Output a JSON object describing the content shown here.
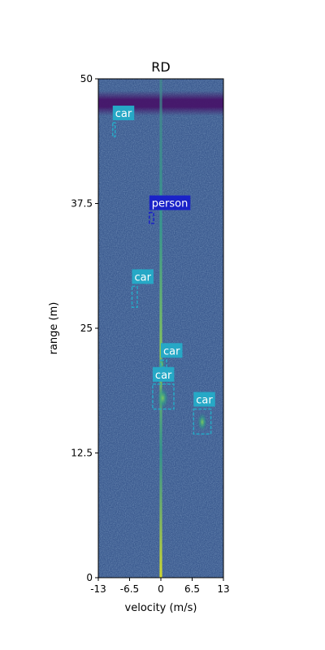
{
  "chart_data": {
    "type": "heatmap",
    "title": "RD",
    "xlabel": "velocity (m/s)",
    "ylabel": "range (m)",
    "xlim": [
      -13,
      13
    ],
    "ylim": [
      0,
      50
    ],
    "x_ticks": [
      {
        "value": -13,
        "label": "-13"
      },
      {
        "value": -6.5,
        "label": "-6.5"
      },
      {
        "value": 0,
        "label": "0"
      },
      {
        "value": 6.5,
        "label": "6.5"
      },
      {
        "value": 13,
        "label": "13"
      }
    ],
    "y_ticks": [
      {
        "value": 0,
        "label": "0"
      },
      {
        "value": 12.5,
        "label": "12.5"
      },
      {
        "value": 25,
        "label": "25"
      },
      {
        "value": 37.5,
        "label": "37.5"
      },
      {
        "value": 50,
        "label": "50"
      }
    ],
    "colormap": "viridis",
    "colors": {
      "background": "#3b5a8f",
      "noise_band": "#4a1a64",
      "car": "#26a8c6",
      "person": "#1a22c8",
      "label_text": "#ffffff"
    },
    "detections": [
      {
        "label": "car",
        "x_range": [
          -10,
          -9.5
        ],
        "y_range": [
          44.2,
          45.6
        ]
      },
      {
        "label": "person",
        "x_range": [
          -2.4,
          -1.5
        ],
        "y_range": [
          35.5,
          36.6
        ]
      },
      {
        "label": "car",
        "x_range": [
          -6,
          -4.9
        ],
        "y_range": [
          27.1,
          29.2
        ]
      },
      {
        "label": "car",
        "x_range": [
          0,
          1.2
        ],
        "y_range": [
          21.1,
          21.8
        ]
      },
      {
        "label": "car",
        "x_range": [
          -1.7,
          2.7
        ],
        "y_range": [
          16.9,
          19.4
        ]
      },
      {
        "label": "car",
        "x_range": [
          6.8,
          10.4
        ],
        "y_range": [
          14.4,
          16.9
        ]
      }
    ]
  }
}
